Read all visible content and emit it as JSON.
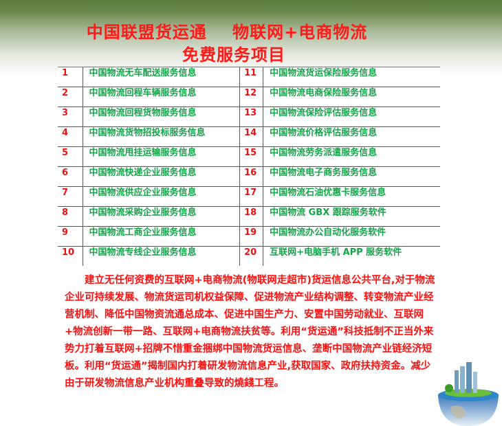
{
  "title": {
    "line1": "中国联盟货运通    物联网+电商物流",
    "line2": "免费服务项目"
  },
  "services": [
    {
      "num": "1",
      "label": "中国物流无车配送服务信息",
      "num2": "11",
      "label2": "中国物流货运保险服务信息"
    },
    {
      "num": "2",
      "label": "中国物流回程车辆服务信息",
      "num2": "12",
      "label2": "中国物流电商保险服务信息"
    },
    {
      "num": "3",
      "label": "中国物流回程货物服务信息",
      "num2": "13",
      "label2": "中国物流保险评估服务信息"
    },
    {
      "num": "4",
      "label": "中国物流货物招投标服务信息",
      "num2": "14",
      "label2": "中国物流价格评估服务信息"
    },
    {
      "num": "5",
      "label": "中国物流甩挂运输服务信息",
      "num2": "15",
      "label2": "中国物流劳务派遣服务信息"
    },
    {
      "num": "6",
      "label": "中国物流快递企业服务信息",
      "num2": "16",
      "label2": "中国物流电子商务服务信息"
    },
    {
      "num": "7",
      "label": "中国物流供应企业服务信息",
      "num2": "17",
      "label2": "中国物流石油优惠卡服务信息"
    },
    {
      "num": "8",
      "label": "中国物流采购企业服务信息",
      "num2": "18",
      "label2": "中国物流 GBX 跟踪服务软件"
    },
    {
      "num": "9",
      "label": "中国物流工商企业服务信息",
      "num2": "19",
      "label2": "中国物流办公自动化服务软件"
    },
    {
      "num": "10",
      "label": "中国物流专线企业服务信息",
      "num2": "20",
      "label2": "互联网+电脑手机 APP 服务软件"
    }
  ],
  "paragraph": "建立无任何资费的互联网+电商物流(物联网走超市)货运信息公共平台,对于物流企业可持续发展、物流货运司机权益保障、促进物流产业结构调整、转变物流产业经营机制、降低中国物资流通总成本、促进中国生产力、安置中国劳动就业、互联网+物流创新一带一路、互联网+电商物流扶贫等。利用“货运通”科技抵制不正当外来势力打着互联网+招牌不惜重金捆绑中国物流货运信息、垄断中国物流产业链经济短板。利用“货运通”揭制国内打着研发物流信息产业,获取国家、政府扶持资金。减少由于研发物流信息产业机构重叠导致的燒錢工程。",
  "colors": {
    "title": "#ff1a1a",
    "number": "#ee1111",
    "service": "#16a34a",
    "header_bar": "#587a38"
  }
}
